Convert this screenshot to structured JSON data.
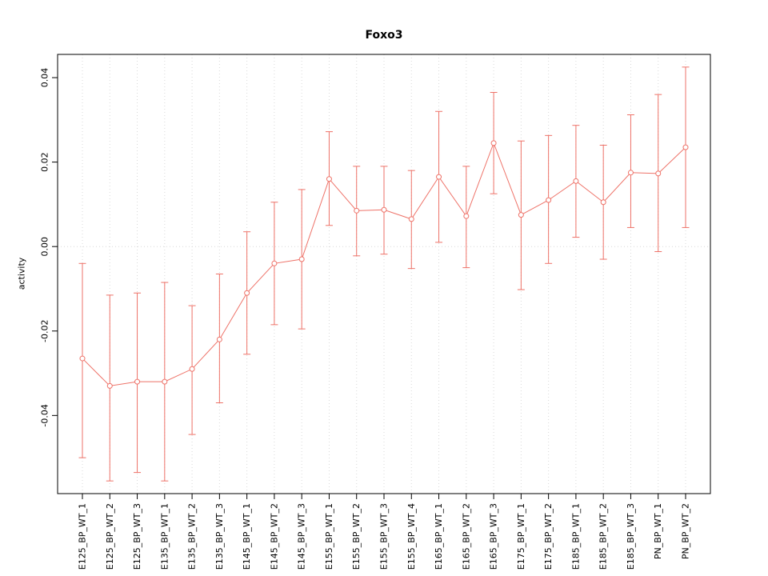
{
  "chart_data": {
    "type": "line",
    "title": "Foxo3",
    "xlabel": "",
    "ylabel": "activity",
    "ylim": [
      -0.0585,
      0.0455
    ],
    "yticks": [
      -0.04,
      -0.02,
      0,
      0.02,
      0.04
    ],
    "grid": "dotted vertical gridline at each category; dotted horizontal gridline at y=0",
    "legend": "none",
    "marker": "open-circle",
    "series_color": "#ee7268",
    "grid_color": "#d9d9d9",
    "axis_color": "#000000",
    "categories": [
      "E125_BP_WT_1",
      "E125_BP_WT_2",
      "E125_BP_WT_3",
      "E135_BP_WT_1",
      "E135_BP_WT_2",
      "E135_BP_WT_3",
      "E145_BP_WT_1",
      "E145_BP_WT_2",
      "E145_BP_WT_3",
      "E155_BP_WT_1",
      "E155_BP_WT_2",
      "E155_BP_WT_3",
      "E155_BP_WT_4",
      "E165_BP_WT_1",
      "E165_BP_WT_2",
      "E165_BP_WT_3",
      "E175_BP_WT_1",
      "E175_BP_WT_2",
      "E185_BP_WT_1",
      "E185_BP_WT_2",
      "E185_BP_WT_3",
      "PN_BP_WT_1",
      "PN_BP_WT_2"
    ],
    "values": [
      -0.0265,
      -0.033,
      -0.032,
      -0.032,
      -0.029,
      -0.022,
      -0.011,
      -0.004,
      -0.003,
      0.016,
      0.0085,
      0.0087,
      0.0065,
      0.0165,
      0.0072,
      0.0245,
      0.0075,
      0.011,
      0.0155,
      0.0105,
      0.0175,
      0.0173,
      0.0235
    ],
    "error_low": [
      -0.05,
      -0.0555,
      -0.0535,
      -0.0555,
      -0.0445,
      -0.037,
      -0.0255,
      -0.0185,
      -0.0195,
      0.005,
      -0.0022,
      -0.0018,
      -0.0052,
      0.001,
      -0.005,
      0.0125,
      -0.0102,
      -0.004,
      0.0022,
      -0.003,
      0.0045,
      -0.0012,
      0.0045
    ],
    "error_high": [
      -0.004,
      -0.0115,
      -0.011,
      -0.0085,
      -0.014,
      -0.0065,
      0.0035,
      0.0105,
      0.0135,
      0.0272,
      0.019,
      0.019,
      0.018,
      0.032,
      0.019,
      0.0365,
      0.025,
      0.0263,
      0.0287,
      0.024,
      0.0312,
      0.036,
      0.0425
    ]
  }
}
